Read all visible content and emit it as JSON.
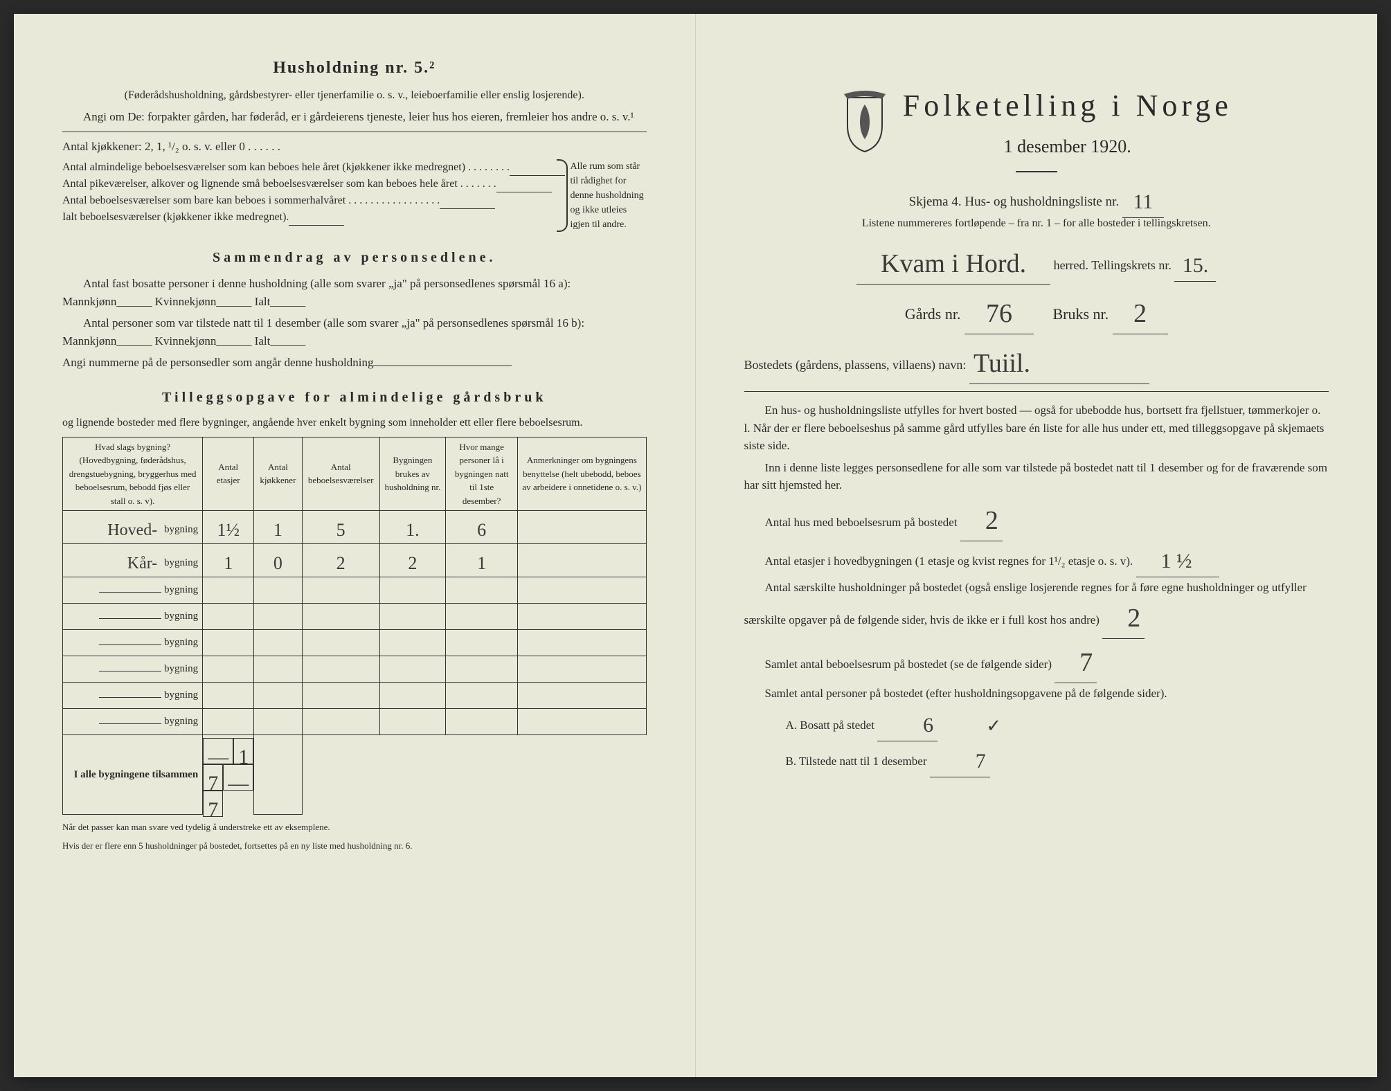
{
  "left": {
    "heading": "Husholdning nr. 5.²",
    "sub1": "(Føderådshusholdning, gårdsbestyrer- eller tjenerfamilie o. s. v., leieboerfamilie eller enslig losjerende).",
    "sub2": "Angi om De:  forpakter gården, har føderåd, er i gårdeierens tjeneste, leier hus hos eieren, fremleier hos andre o. s. v.¹",
    "kjokken": "Antal kjøkkener: 2, 1, ¹/₂ o. s. v. eller 0 . . . . . .",
    "brace_rows": [
      "Antal almindelige beboelsesværelser som kan beboes hele året (kjøkkener ikke medregnet) . . . . . . . .",
      "Antal pikeværelser, alkover og lignende små beboelsesværelser som kan beboes hele året . . . . . . .",
      "Antal beboelsesværelser som bare kan beboes i sommerhalvåret . . . . . . . . . . . . . . . . .",
      "Ialt beboelsesværelser (kjøkkener ikke medregnet)."
    ],
    "brace_right_text": "Alle rum som står til rådighet for denne husholdning og ikke utleies igjen til andre.",
    "sammendrag_hd": "Sammendrag av personsedlene.",
    "sammendrag_p1": "Antal fast bosatte personer i denne husholdning (alle som svarer „ja\" på personsedlenes spørsmål 16 a): Mannkjønn______ Kvinnekjønn______ Ialt______",
    "sammendrag_p2": "Antal personer som var tilstede natt til 1 desember (alle som svarer „ja\" på personsedlenes spørsmål 16 b): Mannkjønn______ Kvinnekjønn______ Ialt______",
    "sammendrag_p3": "Angi nummerne på de personsedler som angår denne husholdning",
    "tillegg_hd": "Tilleggsopgave for almindelige gårdsbruk",
    "tillegg_sub": "og lignende bosteder med flere bygninger, angående hver enkelt bygning som inneholder ett eller flere beboelsesrum.",
    "table": {
      "headers": [
        "Hvad slags bygning?\n(Hovedbygning, føderådshus, drengstuebygning, bryggerhus med beboelsesrum, bebodd fjøs eller stall o. s. v).",
        "Antal etasjer",
        "Antal kjøkkener",
        "Antal beboelsesværelser",
        "Bygningen brukes av husholdning nr.",
        "Hvor mange personer lå i bygningen natt til 1ste desember?",
        "Anmerkninger om bygningens benyttelse (helt ubebodd, beboes av arbeidere i onnetidene o. s. v.)"
      ],
      "prefix_hw": [
        "Hoved-",
        "Kår-"
      ],
      "label": "bygning",
      "rows": [
        [
          "1½",
          "1",
          "5",
          "1.",
          "6",
          ""
        ],
        [
          "1",
          "0",
          "2",
          "2",
          "1",
          ""
        ],
        [
          "",
          "",
          "",
          "",
          "",
          ""
        ],
        [
          "",
          "",
          "",
          "",
          "",
          ""
        ],
        [
          "",
          "",
          "",
          "",
          "",
          ""
        ],
        [
          "",
          "",
          "",
          "",
          "",
          ""
        ],
        [
          "",
          "",
          "",
          "",
          "",
          ""
        ],
        [
          "",
          "",
          "",
          "",
          "",
          ""
        ]
      ],
      "footer_label": "I alle bygningene tilsammen",
      "footer": [
        "—",
        "1",
        "7",
        "—",
        "7",
        ""
      ]
    },
    "footnote1": "Når det passer kan man svare ved tydelig å understreke ett av eksemplene.",
    "footnote2": "Hvis der er flere enn 5 husholdninger på bostedet, fortsettes på en ny liste med husholdning nr. 6."
  },
  "right": {
    "title": "Folketelling i Norge",
    "subtitle": "1 desember 1920.",
    "skjema": "Skjema 4.  Hus- og husholdningsliste nr.",
    "skjema_val": "11",
    "listene": "Listene nummereres fortløpende – fra nr. 1 – for alle bosteder i tellingskretsen.",
    "herred_hw": "Kvam i Hord.",
    "herred_lbl": "herred.  Tellingskrets nr.",
    "tellingskrets_val": "15.",
    "gard_lbl": "Gårds nr.",
    "gard_val": "76",
    "bruks_lbl": "Bruks nr.",
    "bruks_val": "2",
    "bosted_lbl": "Bostedets (gårdens, plassens, villaens) navn:",
    "bosted_val": "Tuiil.",
    "para1": "En hus- og husholdningsliste utfylles for hvert bosted — også for ubebodde hus, bortsett fra fjellstuer, tømmerkojer o. l.  Når der er flere beboelseshus på samme gård utfylles bare én liste for alle hus under ett, med tilleggsopgave på skjemaets siste side.",
    "para2": "Inn i denne liste legges personsedlene for alle som var tilstede på bostedet natt til 1 desember og for de fraværende som har sitt hjemsted her.",
    "antal_hus_lbl": "Antal hus med beboelsesrum på bostedet",
    "antal_hus_val": "2",
    "etasjer_lbl": "Antal etasjer i hovedbygningen (1 etasje og kvist regnes for 1¹/₂ etasje o. s. v).",
    "etasjer_val": "1 ½",
    "hushold_lbl": "Antal særskilte husholdninger på bostedet (også enslige losjerende regnes for å føre egne husholdninger og utfyller særskilte opgaver på de følgende sider, hvis de ikke er i full kost hos andre)",
    "hushold_val": "2",
    "samlet_rum_lbl": "Samlet antal beboelsesrum på bostedet (se de følgende sider)",
    "samlet_rum_val": "7",
    "samlet_pers_lbl": "Samlet antal personer på bostedet (efter husholdningsopgavene på de følgende sider).",
    "bosatt_a": "A.  Bosatt på stedet",
    "bosatt_a_val": "6",
    "bosatt_b": "B.  Tilstede natt til 1 desember",
    "bosatt_b_val": "7"
  }
}
